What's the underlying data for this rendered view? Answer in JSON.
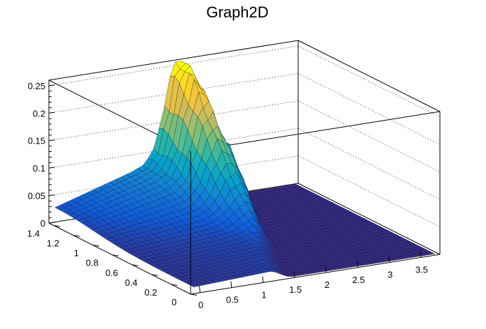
{
  "chart_data": {
    "type": "surface3d",
    "title": "Graph2D",
    "xlabel": "",
    "ylabel": "",
    "zlabel": "",
    "xlim": [
      -0.15,
      3.8
    ],
    "ylim": [
      0,
      1.45
    ],
    "zlim": [
      0,
      0.26
    ],
    "x_ticks": [
      "0",
      "0.5",
      "1",
      "1.5",
      "2",
      "2.5",
      "3",
      "3.5"
    ],
    "y_ticks": [
      "0",
      "0.2",
      "0.4",
      "0.6",
      "0.8",
      "1",
      "1.2",
      "1.4"
    ],
    "z_ticks": [
      "0",
      "0.05",
      "0.1",
      "0.15",
      "0.2",
      "0.25"
    ],
    "x_tick_values": [
      0,
      0.5,
      1,
      1.5,
      2,
      2.5,
      3,
      3.5
    ],
    "y_tick_values": [
      0,
      0.2,
      0.4,
      0.6,
      0.8,
      1.0,
      1.2,
      1.4
    ],
    "z_tick_values": [
      0,
      0.05,
      0.1,
      0.15,
      0.2,
      0.25
    ],
    "grid": true,
    "colormap": [
      "#352a87",
      "#0f5cdd",
      "#1481d6",
      "#06a4ca",
      "#2eb7a4",
      "#87bf77",
      "#d1bb59",
      "#fec832",
      "#f9fb0e"
    ],
    "peak": {
      "x": 1.9,
      "y": 1.4,
      "z": 0.255
    },
    "ridge": {
      "x_start": -0.1,
      "x_end": 1.9,
      "y": 1.4,
      "z_start": 0.03,
      "z_end": 0.25
    },
    "cutoff_edge": [
      {
        "x": 1.4,
        "y": 0.0
      },
      {
        "x": 1.5,
        "y": 0.2
      },
      {
        "x": 1.7,
        "y": 0.4
      },
      {
        "x": 1.9,
        "y": 0.6
      },
      {
        "x": 2.1,
        "y": 0.8
      },
      {
        "x": 2.35,
        "y": 1.0
      },
      {
        "x": 2.6,
        "y": 1.2
      },
      {
        "x": 2.85,
        "y": 1.4
      }
    ]
  }
}
